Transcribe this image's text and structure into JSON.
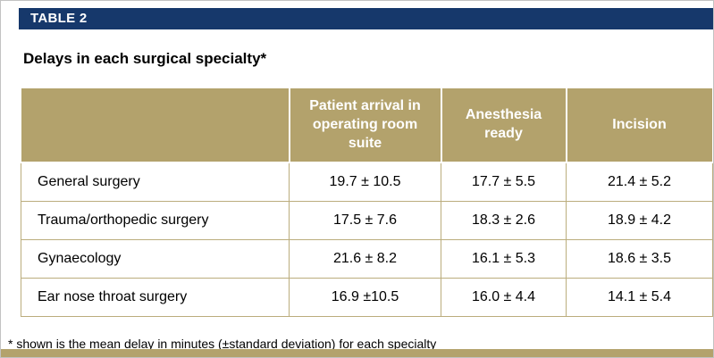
{
  "figure": {
    "label": "TABLE 2",
    "title": "Delays in each surgical specialty*",
    "footnote": "* shown is the mean delay in minutes (±standard deviation) for each specialty"
  },
  "table": {
    "columns": [
      "Patient arrival in operating room suite",
      "Anesthesia ready",
      "Incision"
    ],
    "rows": [
      {
        "label": "General surgery",
        "values": [
          "19.7 ± 10.5",
          "17.7 ± 5.5",
          "21.4 ± 5.2"
        ]
      },
      {
        "label": "Trauma/orthopedic surgery",
        "values": [
          "17.5 ± 7.6",
          "18.3 ± 2.6",
          "18.9 ± 4.2"
        ]
      },
      {
        "label": "Gynaecology",
        "values": [
          "21.6 ± 8.2",
          "16.1 ± 5.3",
          "18.6 ± 3.5"
        ]
      },
      {
        "label": "Ear nose throat surgery",
        "values": [
          "16.9 ±10.5",
          "16.0 ± 4.4",
          "14.1 ± 5.4"
        ]
      }
    ]
  },
  "colors": {
    "header_bar_navy": "#16386b",
    "table_header_tan": "#b3a26c",
    "cell_border_tan": "#bbad7d"
  }
}
